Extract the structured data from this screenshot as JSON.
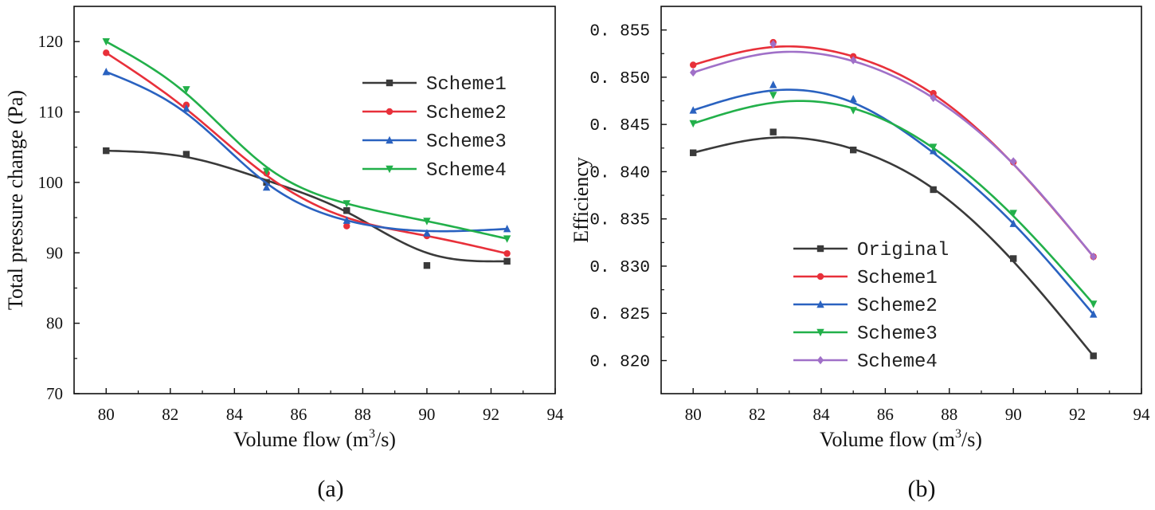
{
  "chart_data": [
    {
      "id": "a",
      "type": "line",
      "caption": "(a)",
      "xlabel": "Volume flow (m",
      "xlabel_sup": "3",
      "xlabel_end": "/s)",
      "ylabel": "Total pressure change (Pa)",
      "xlim": [
        79,
        94
      ],
      "ylim": [
        70,
        125
      ],
      "xticks": [
        80,
        82,
        84,
        86,
        88,
        90,
        92,
        94
      ],
      "yticks": [
        70,
        80,
        90,
        100,
        110,
        120
      ],
      "legend_position": "top-right",
      "x": [
        80,
        82.5,
        85,
        87.5,
        90,
        92.5
      ],
      "series": [
        {
          "name": "Scheme1",
          "color": "#3a3a3a",
          "marker": "square",
          "values": [
            104.5,
            104.0,
            100.0,
            96.0,
            88.2,
            88.8
          ],
          "fit": [
            104.5,
            103.6,
            100.3,
            95.8,
            90.0,
            88.8
          ]
        },
        {
          "name": "Scheme2",
          "color": "#e8303a",
          "marker": "circle",
          "values": [
            118.4,
            111.0,
            101.3,
            93.8,
            92.4,
            89.9
          ],
          "fit": [
            118.4,
            110.4,
            101.0,
            95.0,
            92.4,
            89.9
          ]
        },
        {
          "name": "Scheme3",
          "color": "#2a62c0",
          "marker": "triangle-up",
          "values": [
            115.7,
            110.5,
            99.3,
            94.6,
            92.8,
            93.4
          ],
          "fit": [
            115.7,
            109.8,
            99.9,
            94.6,
            93.1,
            93.4
          ]
        },
        {
          "name": "Scheme4",
          "color": "#22b04a",
          "marker": "triangle-down",
          "values": [
            120.0,
            113.2,
            101.6,
            97.0,
            94.5,
            92.0
          ],
          "fit": [
            120.0,
            112.6,
            102.2,
            97.0,
            94.5,
            92.0
          ]
        }
      ]
    },
    {
      "id": "b",
      "type": "line",
      "caption": "(b)",
      "xlabel": "Volume flow (m",
      "xlabel_sup": "3",
      "xlabel_end": "/s)",
      "ylabel": "Efficiency",
      "xlim": [
        79,
        94
      ],
      "ylim": [
        0.8165,
        0.8575
      ],
      "xticks": [
        80,
        82,
        84,
        86,
        88,
        90,
        92,
        94
      ],
      "yticks": [
        0.82,
        0.825,
        0.83,
        0.835,
        0.84,
        0.845,
        0.85,
        0.855
      ],
      "ytick_labels": [
        "0. 820",
        "0. 825",
        "0. 830",
        "0. 835",
        "0. 840",
        "0. 845",
        "0. 850",
        "0. 855"
      ],
      "legend_position": "bottom-left",
      "x": [
        80,
        82.5,
        85,
        87.5,
        90,
        92.5
      ],
      "series": [
        {
          "name": "Original",
          "color": "#3a3a3a",
          "marker": "square",
          "values": [
            0.842,
            0.8442,
            0.8423,
            0.8381,
            0.8308,
            0.8205
          ],
          "fit": [
            0.842,
            0.8436,
            0.8424,
            0.8382,
            0.8305,
            0.8205
          ]
        },
        {
          "name": "Scheme1",
          "color": "#e8303a",
          "marker": "circle",
          "values": [
            0.8513,
            0.8537,
            0.8522,
            0.8483,
            0.841,
            0.831
          ],
          "fit": [
            0.8513,
            0.8532,
            0.8522,
            0.8482,
            0.8408,
            0.831
          ]
        },
        {
          "name": "Scheme2",
          "color": "#2a62c0",
          "marker": "triangle-up",
          "values": [
            0.8465,
            0.8492,
            0.8477,
            0.8422,
            0.8345,
            0.8249
          ],
          "fit": [
            0.8465,
            0.8486,
            0.8473,
            0.842,
            0.8345,
            0.8249
          ]
        },
        {
          "name": "Scheme3",
          "color": "#22b04a",
          "marker": "triangle-down",
          "values": [
            0.8451,
            0.8481,
            0.8465,
            0.8426,
            0.8356,
            0.826
          ],
          "fit": [
            0.8451,
            0.8473,
            0.8467,
            0.8425,
            0.8353,
            0.826
          ]
        },
        {
          "name": "Scheme4",
          "color": "#a070c8",
          "marker": "diamond",
          "values": [
            0.8505,
            0.8535,
            0.8518,
            0.8478,
            0.8411,
            0.831
          ],
          "fit": [
            0.8505,
            0.8526,
            0.8517,
            0.8478,
            0.8408,
            0.831
          ]
        }
      ]
    }
  ]
}
